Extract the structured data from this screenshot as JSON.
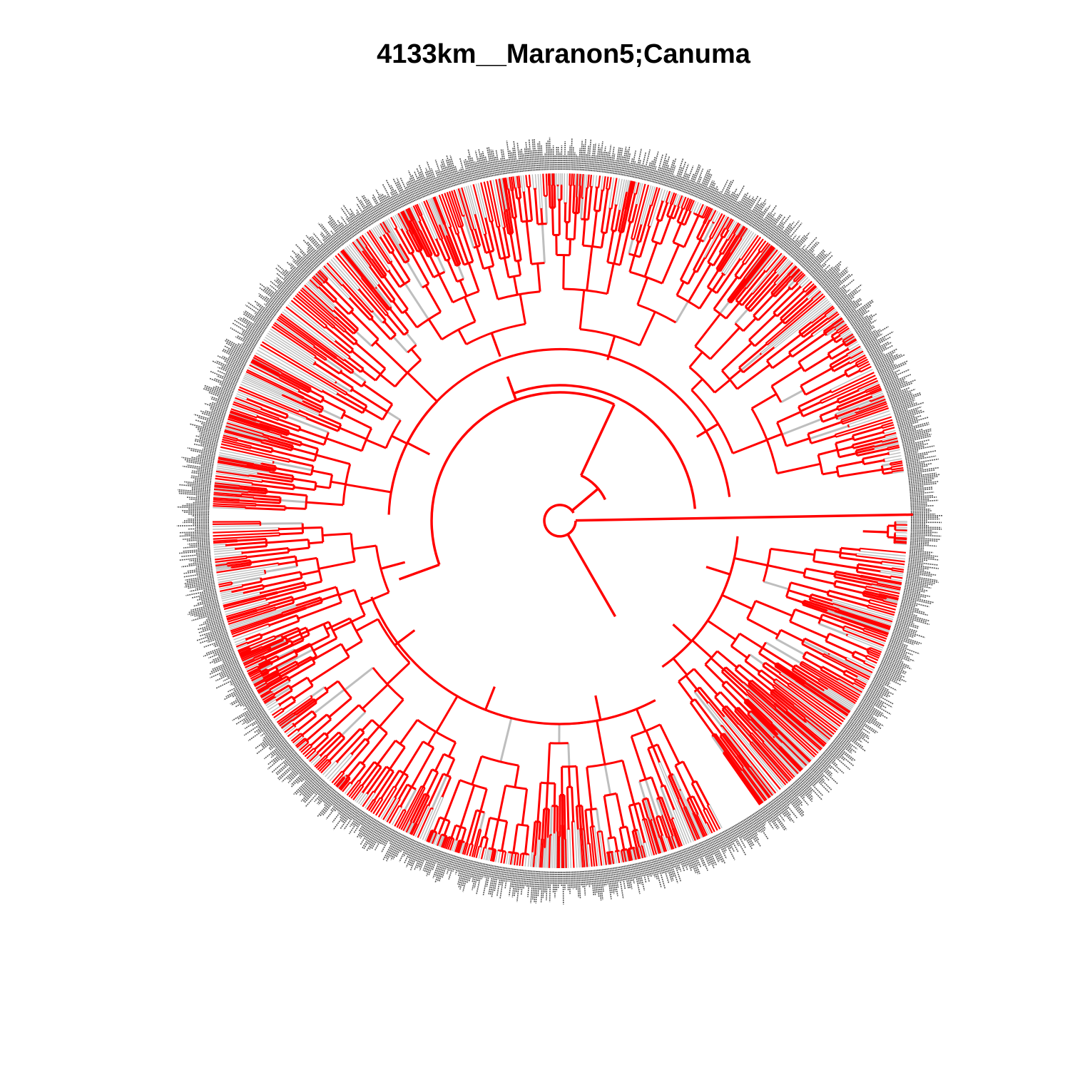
{
  "title": "4133km__Maranon5;Canuma",
  "colors": {
    "highlighted_branch": "#ff0000",
    "other_branch": "#bebebe",
    "tip_labels": "#555555",
    "background": "#ffffff",
    "title": "#000000"
  },
  "layout": "circular-phylogeny"
}
